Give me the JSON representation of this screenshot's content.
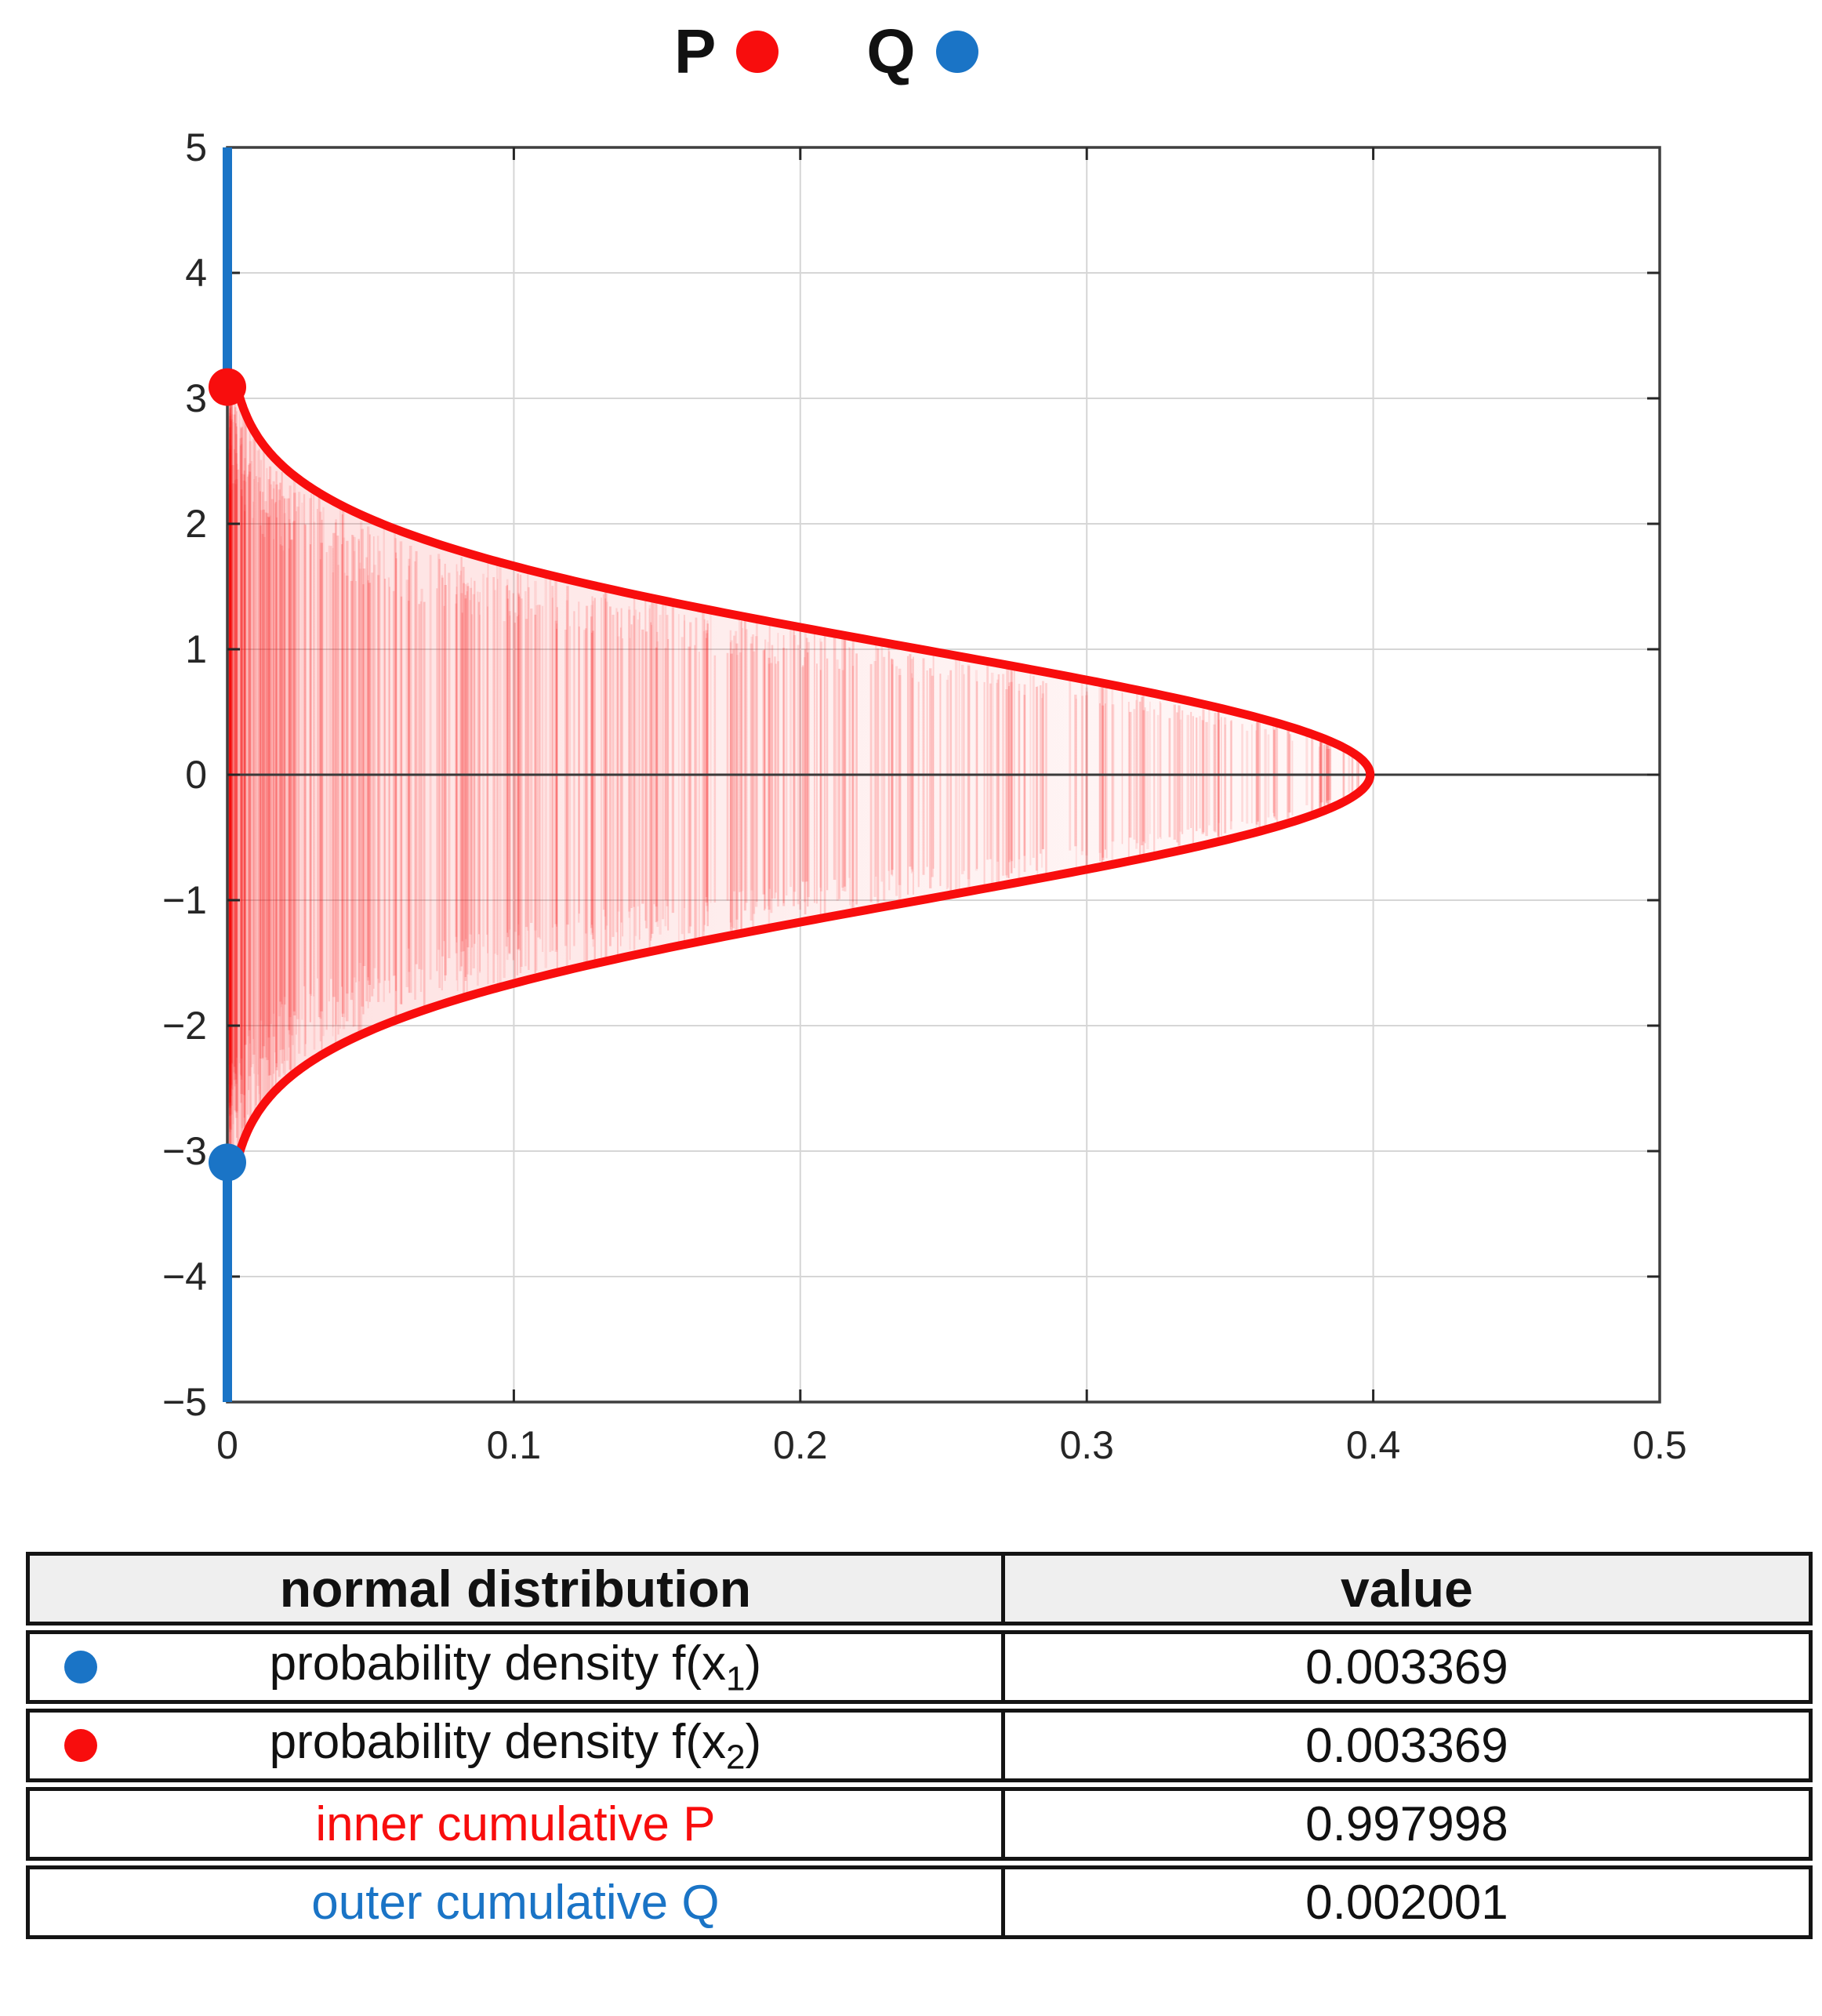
{
  "legend": {
    "p_label": "P",
    "q_label": "Q"
  },
  "colors": {
    "red": "#f80d0d",
    "blue": "#1a74c6",
    "grid": "#d6d6d6",
    "axis_zero": "#3a3a3a",
    "box": "#3f3f3f",
    "tick_label": "#262626",
    "header_bg": "#efefef",
    "table_border": "#141414"
  },
  "chart_data": {
    "type": "area",
    "title": "",
    "orientation": "rotated: probability density on x-axis, variate on y-axis",
    "distribution": {
      "name": "standard normal",
      "mean": 0,
      "sigma": 1,
      "peak_density": 0.398942
    },
    "x_axis": {
      "label": "",
      "range": [
        0,
        0.5
      ],
      "ticks": [
        "0",
        "0.1",
        "0.2",
        "0.3",
        "0.4",
        "0.5"
      ],
      "tick_values": [
        0,
        0.1,
        0.2,
        0.3,
        0.4,
        0.5
      ]
    },
    "y_axis": {
      "label": "",
      "range": [
        -5,
        5
      ],
      "ticks": [
        "5",
        "4",
        "3",
        "2",
        "1",
        "0",
        "−1",
        "−2",
        "−3",
        "−4",
        "−5"
      ],
      "tick_values": [
        5,
        4,
        3,
        2,
        1,
        0,
        -1,
        -2,
        -3,
        -4,
        -5
      ]
    },
    "grid": true,
    "series": [
      {
        "name": "P",
        "color": "#f80d0d",
        "description": "normal pdf curve x = 0.398942·exp(−y²/2) for y in [−3.09, 3.09], interior filled with red vertical hatching",
        "y_start": -3.09,
        "y_end": 3.09,
        "peak_x": 0.398942
      },
      {
        "name": "Q",
        "color": "#1a74c6",
        "description": "outer tail segments drawn on x = 0 for y in [3.09, 5] and [−5, −3.09]"
      }
    ],
    "markers": [
      {
        "name": "marker-x2-red",
        "color": "#f80d0d",
        "x": 0,
        "y": 3.09
      },
      {
        "name": "marker-x1-blue",
        "color": "#1a74c6",
        "x": 0,
        "y": -3.09
      }
    ]
  },
  "table": {
    "header": {
      "col1": "normal distribution",
      "col2": "value"
    },
    "rows": [
      {
        "marker_color": "blue",
        "label_prefix": "probability density f(x",
        "label_sub": "1",
        "label_suffix": ")",
        "value": "0.003369"
      },
      {
        "marker_color": "red",
        "label_prefix": "probability density f(x",
        "label_sub": "2",
        "label_suffix": ")",
        "value": "0.003369"
      },
      {
        "label": "inner cumulative P",
        "label_color": "red",
        "value": "0.997998"
      },
      {
        "label": "outer cumulative Q",
        "label_color": "blue",
        "value": "0.002001"
      }
    ]
  }
}
